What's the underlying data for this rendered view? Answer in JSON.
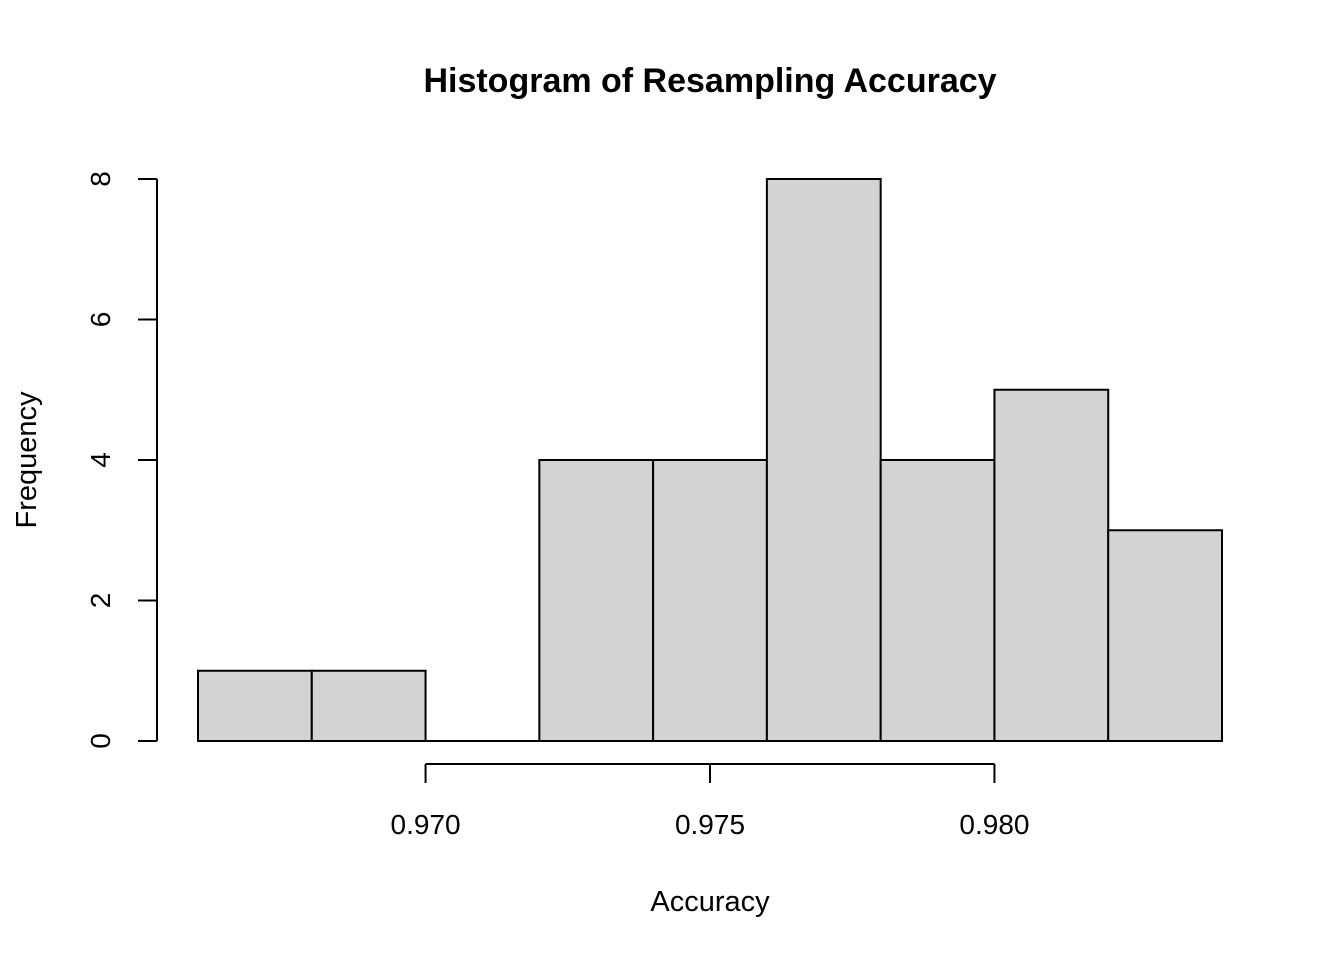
{
  "chart_data": {
    "type": "bar",
    "title": "Histogram of Resampling Accuracy",
    "xlabel": "Accuracy",
    "ylabel": "Frequency",
    "bin_edges": [
      0.966,
      0.968,
      0.97,
      0.972,
      0.974,
      0.976,
      0.978,
      0.98,
      0.982,
      0.984
    ],
    "values": [
      1,
      1,
      0,
      4,
      4,
      8,
      4,
      5,
      3
    ],
    "xlim": [
      0.966,
      0.984
    ],
    "ylim": [
      0,
      8
    ],
    "x_ticks": [
      0.97,
      0.975,
      0.98
    ],
    "x_tick_labels": [
      "0.970",
      "0.975",
      "0.980"
    ],
    "y_ticks": [
      0,
      2,
      4,
      6,
      8
    ],
    "y_tick_labels": [
      "0",
      "2",
      "4",
      "6",
      "8"
    ],
    "bar_color": "#d3d3d3",
    "grid": false,
    "legend": "none"
  }
}
